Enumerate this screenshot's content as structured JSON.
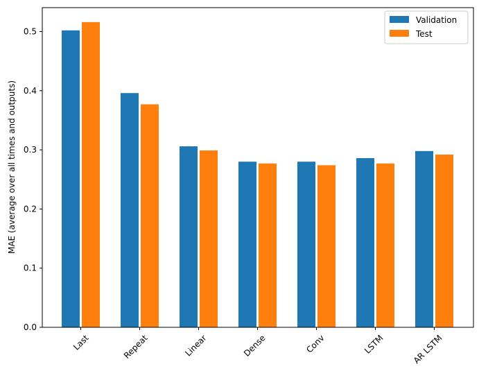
{
  "chart_data": {
    "type": "bar",
    "title": "",
    "xlabel": "",
    "ylabel": "MAE (average over all times and outputs)",
    "categories": [
      "Last",
      "Repeat",
      "Linear",
      "Dense",
      "Conv",
      "LSTM",
      "AR LSTM"
    ],
    "series": [
      {
        "name": "Validation",
        "color": "#1f77b4",
        "values": [
          0.502,
          0.396,
          0.306,
          0.28,
          0.28,
          0.286,
          0.298
        ]
      },
      {
        "name": "Test",
        "color": "#ff7f0e",
        "values": [
          0.516,
          0.377,
          0.299,
          0.277,
          0.274,
          0.277,
          0.292
        ]
      }
    ],
    "ylim": [
      0,
      0.54
    ],
    "yticks": [
      "0.0",
      "0.1",
      "0.2",
      "0.3",
      "0.4",
      "0.5"
    ],
    "xtick_rotation": 45,
    "grid": false,
    "legend": "top-right"
  }
}
